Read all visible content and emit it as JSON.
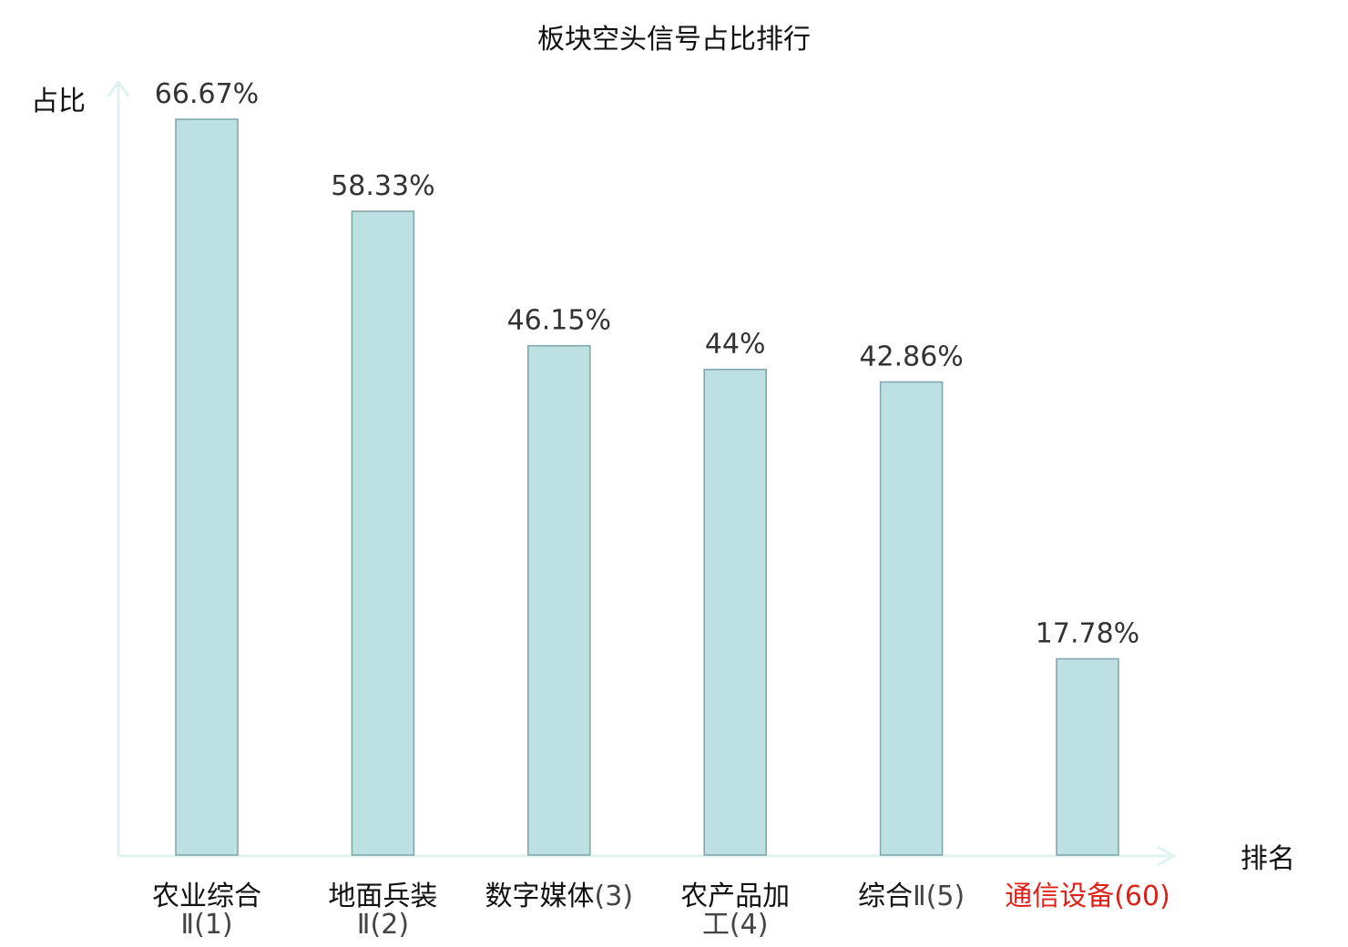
{
  "chart_data": {
    "type": "bar",
    "title": "板块空头信号占比排行",
    "ylabel": "占比",
    "xlabel": "排名",
    "ylim": [
      0,
      70
    ],
    "grid": false,
    "legend": "none",
    "categories": [
      {
        "name": "农业综合",
        "rank": "Ⅱ(1)",
        "highlight": false
      },
      {
        "name": "地面兵装",
        "rank": "Ⅱ(2)",
        "highlight": false
      },
      {
        "name": "数字媒体",
        "rank": "(3)",
        "highlight": false
      },
      {
        "name": "农产品加",
        "rank": "工(4)",
        "highlight": false
      },
      {
        "name": "综合",
        "rank": "Ⅱ(5)",
        "highlight": false
      },
      {
        "name": "通信设备",
        "rank": "(60)",
        "highlight": true
      }
    ],
    "values": [
      66.67,
      58.33,
      46.15,
      44,
      42.86,
      17.78
    ],
    "value_labels": [
      "66.67%",
      "58.33%",
      "46.15%",
      "44%",
      "42.86%",
      "17.78%"
    ],
    "colors": {
      "bar_fill": "#bde0e3",
      "bar_stroke": "#7fa4a7",
      "axis": "#e0f2ef",
      "text": "#111111",
      "label_text": "#333333",
      "rank_text": "#444444",
      "highlight": "#e0211b"
    }
  }
}
